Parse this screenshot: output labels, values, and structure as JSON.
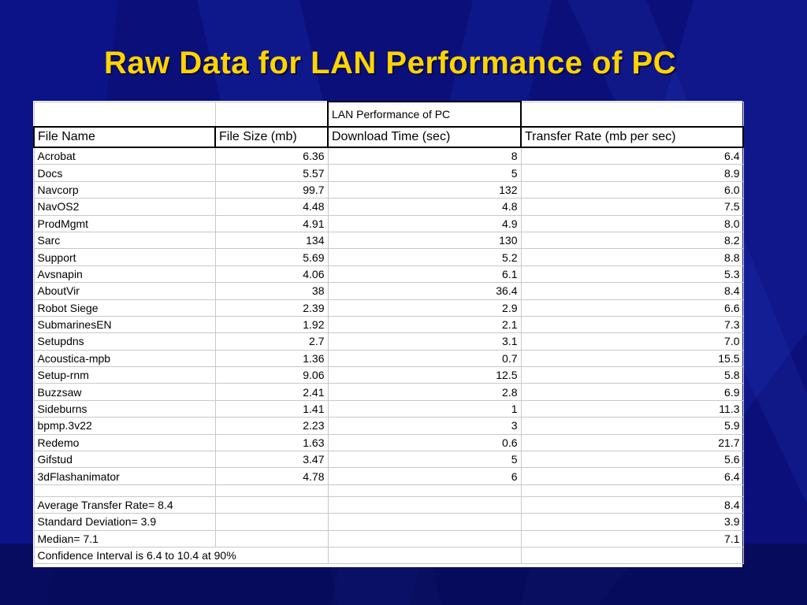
{
  "slide": {
    "title": "Raw Data for LAN Performance of PC"
  },
  "table": {
    "title": "LAN Performance of PC",
    "headers": [
      "File Name",
      "File Size (mb)",
      "Download Time (sec)",
      "Transfer Rate (mb per sec)"
    ],
    "rows": [
      [
        "Acrobat",
        "6.36",
        "8",
        "6.4"
      ],
      [
        "Docs",
        "5.57",
        "5",
        "8.9"
      ],
      [
        "Navcorp",
        "99.7",
        "132",
        "6.0"
      ],
      [
        "NavOS2",
        "4.48",
        "4.8",
        "7.5"
      ],
      [
        "ProdMgmt",
        "4.91",
        "4.9",
        "8.0"
      ],
      [
        "Sarc",
        "134",
        "130",
        "8.2"
      ],
      [
        "Support",
        "5.69",
        "5.2",
        "8.8"
      ],
      [
        "Avsnapin",
        "4.06",
        "6.1",
        "5.3"
      ],
      [
        "AboutVir",
        "38",
        "36.4",
        "8.4"
      ],
      [
        "Robot Siege",
        "2.39",
        "2.9",
        "6.6"
      ],
      [
        "SubmarinesEN",
        "1.92",
        "2.1",
        "7.3"
      ],
      [
        "Setupdns",
        "2.7",
        "3.1",
        "7.0"
      ],
      [
        "Acoustica-mpb",
        "1.36",
        "0.7",
        "15.5"
      ],
      [
        "Setup-rnm",
        "9.06",
        "12.5",
        "5.8"
      ],
      [
        "Buzzsaw",
        "2.41",
        "2.8",
        "6.9"
      ],
      [
        "Sideburns",
        "1.41",
        "1",
        "11.3"
      ],
      [
        "bpmp.3v22",
        "2.23",
        "3",
        "5.9"
      ],
      [
        "Redemo",
        "1.63",
        "0.6",
        "21.7"
      ],
      [
        "Gifstud",
        "3.47",
        "5",
        "5.6"
      ],
      [
        "3dFlashanimator",
        "4.78",
        "6",
        "6.4"
      ]
    ],
    "stats": [
      {
        "label": "Average Transfer Rate= 8.4",
        "value": "8.4"
      },
      {
        "label": "Standard Deviation= 3.9",
        "value": "3.9"
      },
      {
        "label": "Median= 7.1",
        "value": "7.1"
      }
    ],
    "footer": "Confidence Interval is 6.4 to 10.4 at 90%"
  },
  "colors": {
    "background": "#0a0f7a",
    "title": "#ffd400",
    "sheet": "#ffffff"
  }
}
